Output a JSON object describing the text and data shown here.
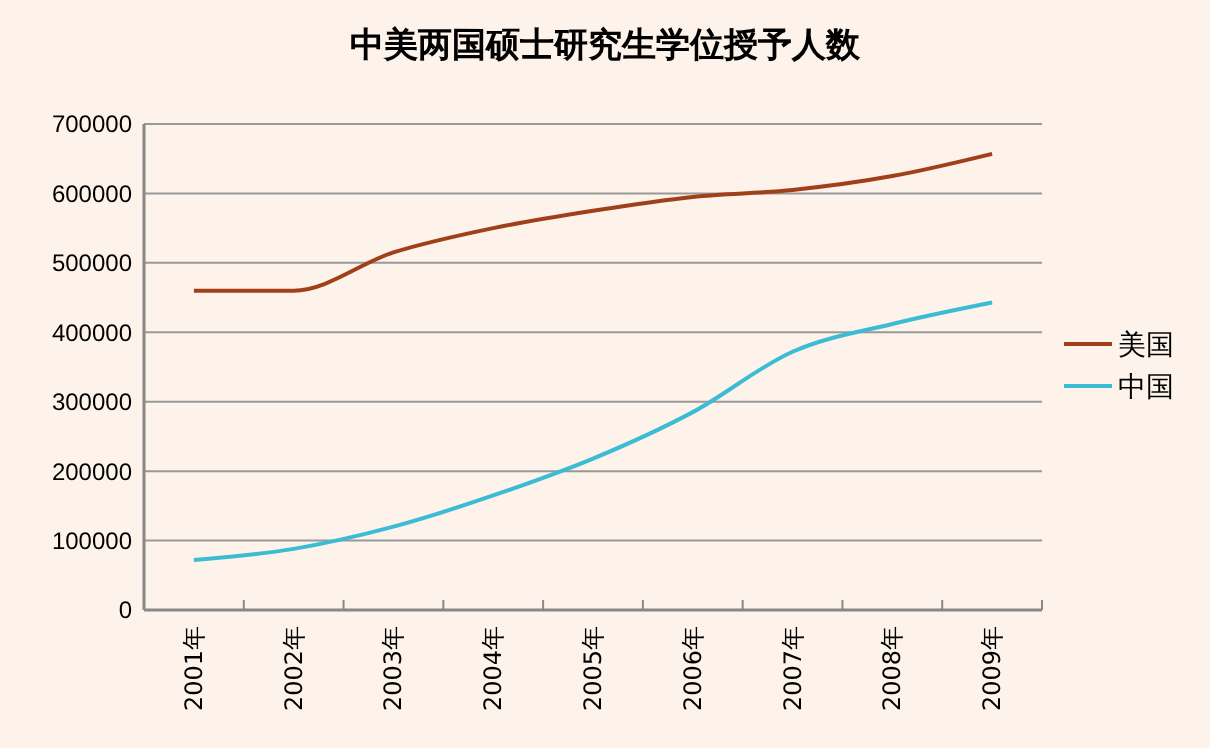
{
  "chart_data": {
    "type": "line",
    "title": "中美两国硕士研究生学位授予人数",
    "categories": [
      "2001年",
      "2002年",
      "2003年",
      "2004年",
      "2005年",
      "2006年",
      "2007年",
      "2008年",
      "2009年"
    ],
    "series": [
      {
        "name": "美国",
        "color": "#a0401a",
        "values": [
          460000,
          460000,
          515000,
          550000,
          575000,
          595000,
          605000,
          625000,
          657000
        ]
      },
      {
        "name": "中国",
        "color": "#3bbcd4",
        "values": [
          72000,
          88000,
          120000,
          165000,
          218000,
          285000,
          372000,
          412000,
          443000
        ]
      }
    ],
    "ylim": [
      0,
      700000
    ],
    "yticks": [
      0,
      100000,
      200000,
      300000,
      400000,
      500000,
      600000,
      700000
    ],
    "grid": "y",
    "legend": "right"
  }
}
